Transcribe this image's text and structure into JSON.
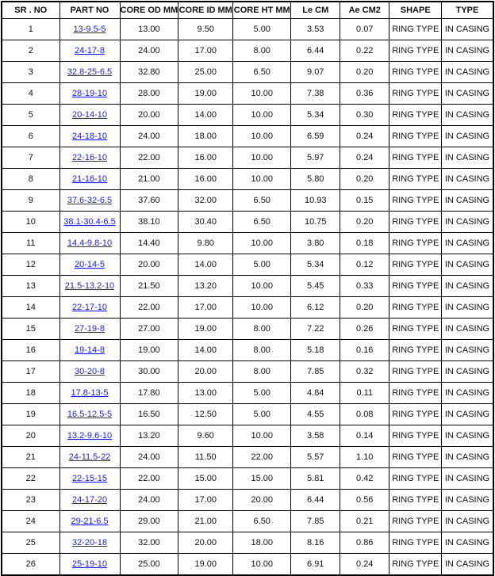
{
  "headers": [
    "SR . NO",
    "PART NO",
    "CORE OD MM",
    "CORE ID MM",
    "CORE HT MM",
    "Le CM",
    "Ae CM2",
    "SHAPE",
    "TYPE"
  ],
  "link_color": "#1a1aff",
  "rows": [
    [
      "1",
      "13-9.5-5",
      "13.00",
      "9.50",
      "5.00",
      "3.53",
      "0.07",
      "RING TYPE",
      "IN CASING"
    ],
    [
      "2",
      "24-17-8",
      "24.00",
      "17.00",
      "8.00",
      "6.44",
      "0.22",
      "RING TYPE",
      "IN CASING"
    ],
    [
      "3",
      "32.8-25-6.5",
      "32.80",
      "25.00",
      "6.50",
      "9.07",
      "0.20",
      "RING TYPE",
      "IN CASING"
    ],
    [
      "4",
      "28-19-10",
      "28.00",
      "19.00",
      "10.00",
      "7.38",
      "0.36",
      "RING TYPE",
      "IN CASING"
    ],
    [
      "5",
      "20-14-10",
      "20.00",
      "14.00",
      "10.00",
      "5.34",
      "0.30",
      "RING TYPE",
      "IN CASING"
    ],
    [
      "6",
      "24-18-10",
      "24.00",
      "18.00",
      "10.00",
      "6.59",
      "0.24",
      "RING TYPE",
      "IN CASING"
    ],
    [
      "7",
      "22-16-10",
      "22.00",
      "16.00",
      "10.00",
      "5.97",
      "0.24",
      "RING TYPE",
      "IN CASING"
    ],
    [
      "8",
      "21-16-10",
      "21.00",
      "16.00",
      "10.00",
      "5.80",
      "0.20",
      "RING TYPE",
      "IN CASING"
    ],
    [
      "9",
      "37.6-32-6.5",
      "37.60",
      "32.00",
      "6.50",
      "10.93",
      "0.15",
      "RING TYPE",
      "IN CASING"
    ],
    [
      "10",
      "38.1-30.4-6.5",
      "38.10",
      "30.40",
      "6.50",
      "10.75",
      "0.20",
      "RING TYPE",
      "IN CASING"
    ],
    [
      "11",
      "14.4-9.8-10",
      "14.40",
      "9.80",
      "10.00",
      "3.80",
      "0.18",
      "RING TYPE",
      "IN CASING"
    ],
    [
      "12",
      "20-14-5",
      "20.00",
      "14.00",
      "5.00",
      "5.34",
      "0.12",
      "RING TYPE",
      "IN CASING"
    ],
    [
      "13",
      "21.5-13.2-10",
      "21.50",
      "13.20",
      "10.00",
      "5.45",
      "0.33",
      "RING TYPE",
      "IN CASING"
    ],
    [
      "14",
      "22-17-10",
      "22.00",
      "17.00",
      "10.00",
      "6.12",
      "0.20",
      "RING TYPE",
      "IN CASING"
    ],
    [
      "15",
      "27-19-8",
      "27.00",
      "19.00",
      "8.00",
      "7.22",
      "0.26",
      "RING TYPE",
      "IN CASING"
    ],
    [
      "16",
      "19-14-8",
      "19.00",
      "14.00",
      "8.00",
      "5.18",
      "0.16",
      "RING TYPE",
      "IN CASING"
    ],
    [
      "17",
      "30-20-8",
      "30.00",
      "20.00",
      "8.00",
      "7.85",
      "0.32",
      "RING TYPE",
      "IN CASING"
    ],
    [
      "18",
      "17.8-13-5",
      "17.80",
      "13.00",
      "5.00",
      "4.84",
      "0.11",
      "RING TYPE",
      "IN CASING"
    ],
    [
      "19",
      "16.5-12.5-5",
      "16.50",
      "12.50",
      "5.00",
      "4.55",
      "0.08",
      "RING TYPE",
      "IN CASING"
    ],
    [
      "20",
      "13.2-9.6-10",
      "13.20",
      "9.60",
      "10.00",
      "3.58",
      "0.14",
      "RING TYPE",
      "IN CASING"
    ],
    [
      "21",
      "24-11.5-22",
      "24.00",
      "11.50",
      "22.00",
      "5.57",
      "1.10",
      "RING TYPE",
      "IN CASING"
    ],
    [
      "22",
      "22-15-15",
      "22.00",
      "15.00",
      "15.00",
      "5.81",
      "0.42",
      "RING TYPE",
      "IN CASING"
    ],
    [
      "23",
      "24-17-20",
      "24.00",
      "17.00",
      "20.00",
      "6.44",
      "0.56",
      "RING TYPE",
      "IN CASING"
    ],
    [
      "24",
      "29-21-6.5",
      "29.00",
      "21.00",
      "6.50",
      "7.85",
      "0.21",
      "RING TYPE",
      "IN CASING"
    ],
    [
      "25",
      "32-20-18",
      "32.00",
      "20.00",
      "18.00",
      "8.16",
      "0.86",
      "RING TYPE",
      "IN CASING"
    ],
    [
      "26",
      "25-19-10",
      "25.00",
      "19.00",
      "10.00",
      "6.91",
      "0.24",
      "RING TYPE",
      "IN CASING"
    ]
  ]
}
